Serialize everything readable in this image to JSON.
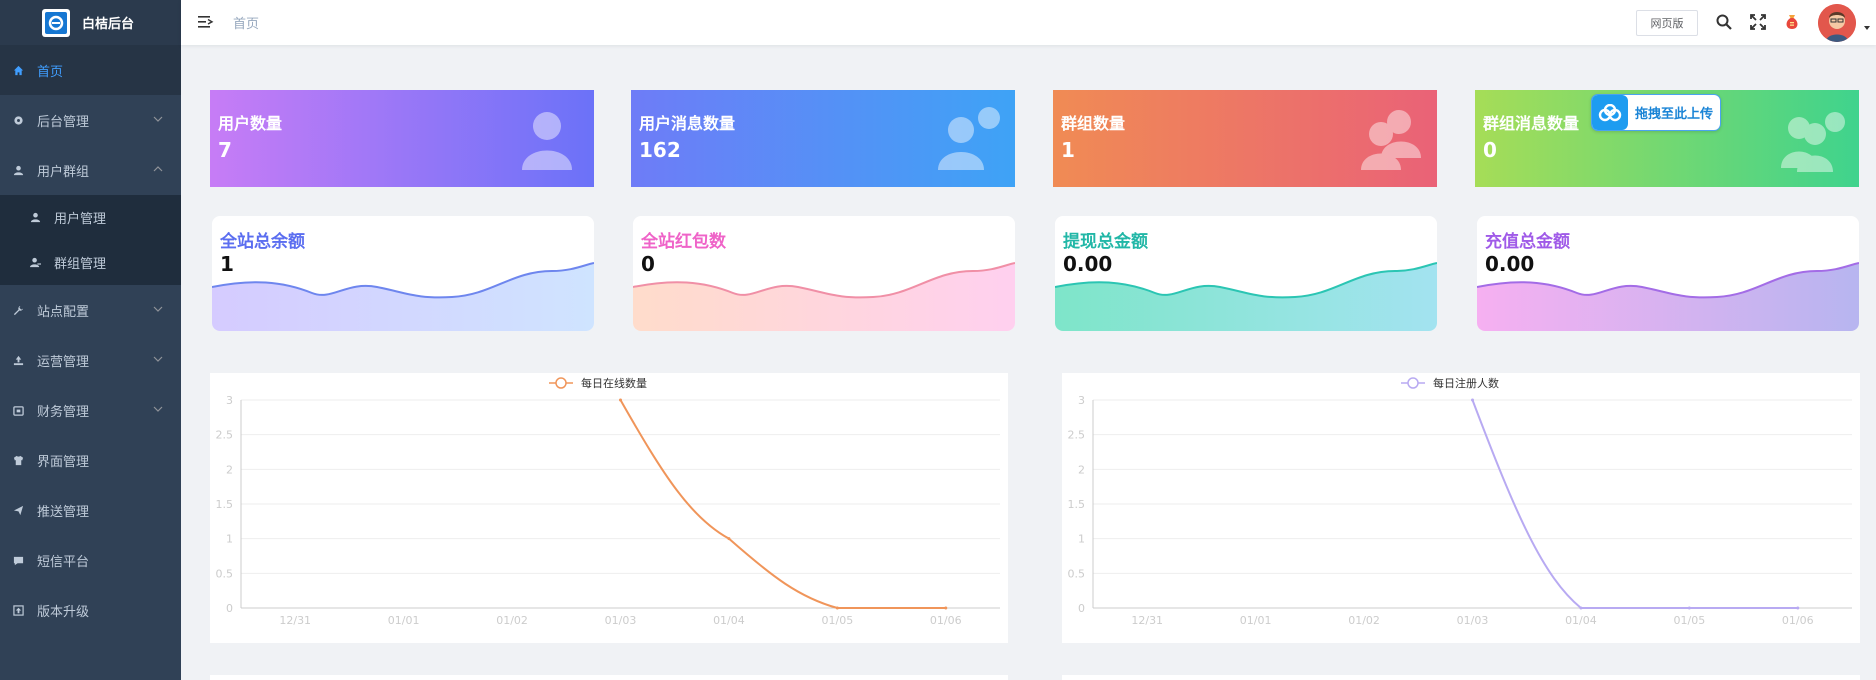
{
  "app": {
    "title": "白桔后台"
  },
  "header": {
    "breadcrumb": "首页",
    "web_button": "网页版"
  },
  "sidebar": {
    "items": [
      {
        "label": "首页",
        "icon": "home-icon",
        "active": true,
        "arrow": ""
      },
      {
        "label": "后台管理",
        "icon": "gear-icon",
        "arrow": "down"
      },
      {
        "label": "用户群组",
        "icon": "user-icon",
        "arrow": "up"
      },
      {
        "label": "站点配置",
        "icon": "wrench-icon",
        "arrow": "down"
      },
      {
        "label": "运营管理",
        "icon": "recycle-icon",
        "arrow": "down"
      },
      {
        "label": "财务管理",
        "icon": "finance-icon",
        "arrow": "down"
      },
      {
        "label": "界面管理",
        "icon": "shirt-icon",
        "arrow": ""
      },
      {
        "label": "推送管理",
        "icon": "send-icon",
        "arrow": ""
      },
      {
        "label": "短信平台",
        "icon": "message-icon",
        "arrow": ""
      },
      {
        "label": "版本升级",
        "icon": "upgrade-icon",
        "arrow": ""
      }
    ],
    "sub_items": [
      {
        "label": "用户管理",
        "icon": "user-icon"
      },
      {
        "label": "群组管理",
        "icon": "group-icon"
      }
    ]
  },
  "stats": [
    {
      "label": "用户数量",
      "value": "7",
      "gradient": [
        "#c77cf6",
        "#6b72f8"
      ]
    },
    {
      "label": "用户消息数量",
      "value": "162",
      "gradient": [
        "#6e7cf7",
        "#3ea3f6"
      ]
    },
    {
      "label": "群组数量",
      "value": "1",
      "gradient": [
        "#f08b54",
        "#ea6277"
      ]
    },
    {
      "label": "群组消息数量",
      "value": "0",
      "gradient": [
        "#a6dd57",
        "#3fd38d"
      ]
    }
  ],
  "wave_cards": [
    {
      "label": "全站总余额",
      "value": "1",
      "label_color": "#5b6ef0",
      "line_color": "#6e86ee",
      "fill": [
        "#d5cbff",
        "#cfe4ff"
      ]
    },
    {
      "label": "全站红包数",
      "value": "0",
      "label_color": "#ef63c8",
      "line_color": "#f08fa6",
      "fill": [
        "#ffdccb",
        "#ffd0ef"
      ]
    },
    {
      "label": "提现总金额",
      "value": "0.00",
      "label_color": "#22b7a7",
      "line_color": "#2bc5b3",
      "fill": [
        "#7ee5c9",
        "#a3e3f0"
      ]
    },
    {
      "label": "充值总金额",
      "value": "0.00",
      "label_color": "#a05be8",
      "line_color": "#a36ce6",
      "fill": [
        "#f6b0f1",
        "#b7b5f0"
      ]
    }
  ],
  "upload_badge": {
    "text": "拖拽至此上传"
  },
  "chart_data": [
    {
      "type": "line",
      "title": "",
      "series": [
        {
          "name": "每日在线数量",
          "color": "#f0955a",
          "values": [
            null,
            null,
            null,
            3,
            1,
            0,
            0
          ]
        }
      ],
      "x": [
        "12/31",
        "01/01",
        "01/02",
        "01/03",
        "01/04",
        "01/05",
        "01/06"
      ],
      "ylim": [
        0,
        3
      ],
      "yticks": [
        "0",
        "0.5",
        "1",
        "1.5",
        "2",
        "2.5",
        "3"
      ],
      "legend": "top-center",
      "grid": true
    },
    {
      "type": "line",
      "title": "",
      "series": [
        {
          "name": "每日注册人数",
          "color": "#b8aaf2",
          "values": [
            null,
            null,
            null,
            3,
            0,
            0,
            0
          ]
        }
      ],
      "x": [
        "12/31",
        "01/01",
        "01/02",
        "01/03",
        "01/04",
        "01/05",
        "01/06"
      ],
      "ylim": [
        0,
        3
      ],
      "yticks": [
        "0",
        "0.5",
        "1",
        "1.5",
        "2",
        "2.5",
        "3"
      ],
      "legend": "top-center",
      "grid": true
    }
  ]
}
